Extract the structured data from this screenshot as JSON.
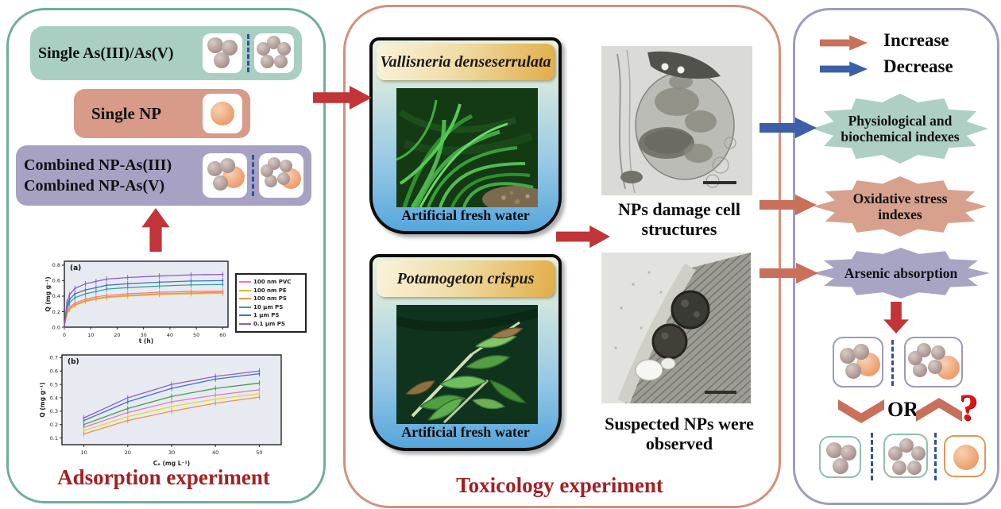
{
  "left_panel": {
    "title": "Adsorption experiment",
    "box1_label": "Single As(III)/As(V)",
    "box2_label": "Single NP",
    "box3_line1": "Combined NP-As(III)",
    "box3_line2": "Combined NP-As(V)"
  },
  "chart_data": [
    {
      "type": "line",
      "label": "(a)",
      "x": [
        0,
        1,
        2,
        4,
        8,
        12,
        16,
        24,
        36,
        48,
        60
      ],
      "xlabel": "t (h)",
      "ylabel": "Q (mg g⁻¹)",
      "xlim": [
        0,
        62
      ],
      "ylim": [
        0,
        0.85
      ],
      "xticks": [
        0,
        10,
        20,
        30,
        40,
        50,
        60
      ],
      "yticks": [
        0.0,
        0.2,
        0.4,
        0.6,
        0.8
      ],
      "grid": false,
      "legend_position": "right",
      "series": [
        {
          "name": "100 nm PVC",
          "color": "#e87ea1",
          "values": [
            0.02,
            0.19,
            0.26,
            0.31,
            0.36,
            0.39,
            0.41,
            0.43,
            0.45,
            0.46,
            0.465
          ]
        },
        {
          "name": "100 nm PE",
          "color": "#e3bc2b",
          "values": [
            0.02,
            0.17,
            0.23,
            0.28,
            0.33,
            0.36,
            0.38,
            0.4,
            0.42,
            0.43,
            0.435
          ]
        },
        {
          "name": "100 nm PS",
          "color": "#ef9240",
          "values": [
            0.02,
            0.18,
            0.24,
            0.29,
            0.34,
            0.37,
            0.39,
            0.41,
            0.43,
            0.44,
            0.45
          ]
        },
        {
          "name": "10 μm PS",
          "color": "#2fa39a",
          "values": [
            0.02,
            0.24,
            0.32,
            0.38,
            0.43,
            0.46,
            0.49,
            0.51,
            0.53,
            0.545,
            0.55
          ]
        },
        {
          "name": "1 μm PS",
          "color": "#4472c4",
          "values": [
            0.02,
            0.27,
            0.36,
            0.43,
            0.48,
            0.51,
            0.54,
            0.56,
            0.58,
            0.595,
            0.6
          ]
        },
        {
          "name": "0.1 μm PS",
          "color": "#8a5fc8",
          "values": [
            0.02,
            0.32,
            0.42,
            0.5,
            0.56,
            0.59,
            0.62,
            0.64,
            0.66,
            0.675,
            0.68
          ]
        }
      ]
    },
    {
      "type": "line",
      "label": "(b)",
      "x": [
        10,
        20,
        30,
        40,
        50
      ],
      "xlabel": "Cₑ (mg L⁻¹)",
      "ylabel": "Q (mg g⁻¹)",
      "xlim": [
        5,
        55
      ],
      "ylim": [
        0.05,
        0.72
      ],
      "xticks": [
        10,
        20,
        30,
        40,
        50
      ],
      "yticks": [
        0.1,
        0.2,
        0.3,
        0.4,
        0.5,
        0.6,
        0.7
      ],
      "grid": false,
      "legend_position": "none",
      "series": [
        {
          "name": "100 nm PVC",
          "color": "#d87ec0",
          "values": [
            0.18,
            0.29,
            0.37,
            0.42,
            0.46
          ]
        },
        {
          "name": "100 nm PE",
          "color": "#e8d62b",
          "values": [
            0.155,
            0.26,
            0.335,
            0.39,
            0.43
          ]
        },
        {
          "name": "100 nm PS",
          "color": "#ef9240",
          "values": [
            0.13,
            0.23,
            0.3,
            0.36,
            0.405
          ]
        },
        {
          "name": "10 μm PS",
          "color": "#3f9e4f",
          "values": [
            0.2,
            0.32,
            0.41,
            0.47,
            0.51
          ]
        },
        {
          "name": "1 μm PS",
          "color": "#4472c4",
          "values": [
            0.23,
            0.37,
            0.47,
            0.54,
            0.58
          ]
        },
        {
          "name": "0.1 μm PS",
          "color": "#8a5fc8",
          "values": [
            0.25,
            0.4,
            0.5,
            0.56,
            0.6
          ]
        }
      ]
    }
  ],
  "middle_panel": {
    "title": "Toxicology experiment",
    "beaker1_name": "Vallisneria denseserrulata",
    "beaker1_water": "Artificial fresh water",
    "beaker2_name": "Potamogeton crispus",
    "beaker2_water": "Artificial fresh water",
    "tem1_caption": "NPs damage cell structures",
    "tem2_caption": "Suspected NPs were observed"
  },
  "right_panel": {
    "legend_increase": "Increase",
    "legend_decrease": "Decrease",
    "badge1": "Physiological and biochemical indexes",
    "badge2": "Oxidative stress indexes",
    "badge3": "Arsenic absorption",
    "or_label": "OR",
    "question": "?"
  },
  "colors": {
    "left_border": "#6fae9b",
    "middle_border": "#d4907c",
    "right_border": "#9b9cc0",
    "teal_box": "#a9cfc2",
    "salmon_box": "#d89a89",
    "purple_box": "#a7a2c3",
    "badge_teal": "#aecfc4",
    "badge_salmon": "#d8a18e",
    "badge_purple": "#a8a4c4",
    "red_arrow": "#c13438",
    "increase_arrow": "#c9705a",
    "decrease_arrow": "#3b5fa8",
    "title_red": "#a32024"
  }
}
